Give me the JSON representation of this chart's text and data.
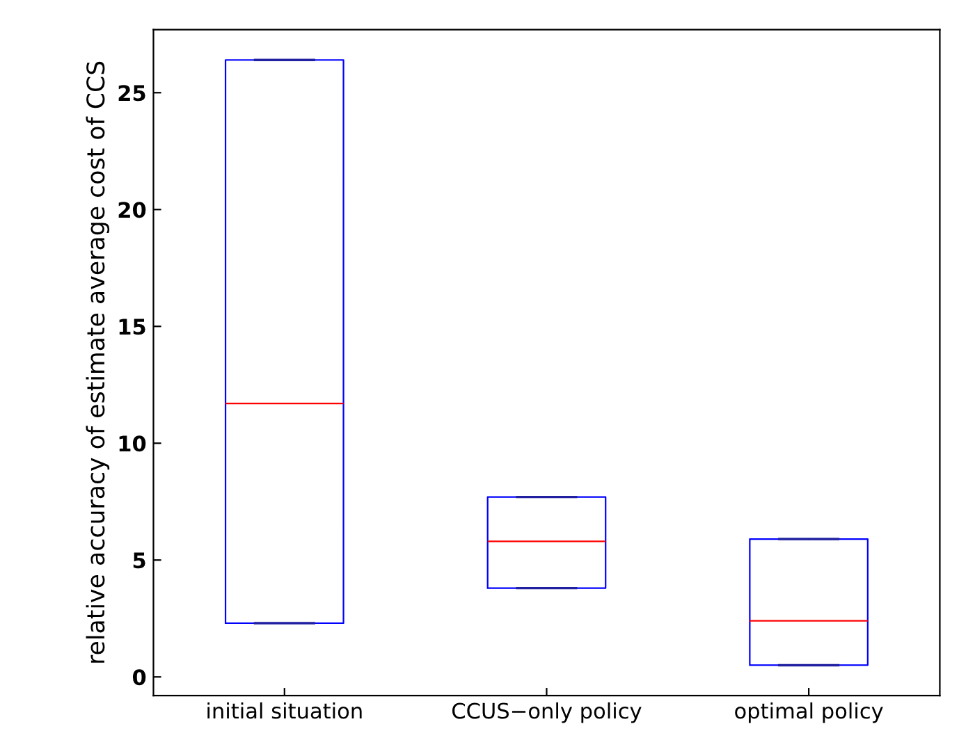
{
  "chart_data": {
    "type": "box",
    "ylabel": "relative accuracy of estimate average cost of CCS",
    "categories": [
      "initial situation",
      "CCUS−only policy",
      "optimal policy"
    ],
    "boxes": [
      {
        "low": 2.3,
        "q1": 2.3,
        "median": 11.7,
        "q3": 26.4,
        "high": 26.4
      },
      {
        "low": 3.8,
        "q1": 3.8,
        "median": 5.8,
        "q3": 7.7,
        "high": 7.7
      },
      {
        "low": 0.5,
        "q1": 0.5,
        "median": 2.4,
        "q3": 5.9,
        "high": 5.9
      }
    ],
    "color": "#0000ff",
    "ylim": [
      -0.8,
      27.7
    ],
    "yticks": [
      0,
      5,
      10,
      15,
      20,
      25
    ],
    "grid": false
  }
}
